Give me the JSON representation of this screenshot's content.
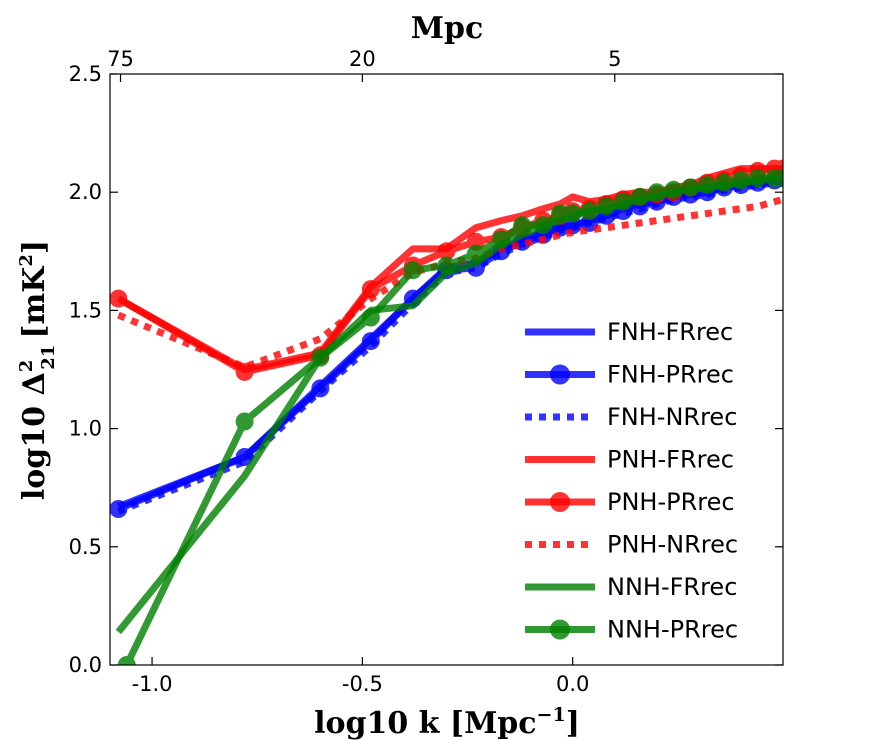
{
  "chart_data": {
    "type": "line",
    "xlabel": "log10 k [Mpc",
    "xlabel_sup": "−1",
    "xlabel_end": "]",
    "ylabel": "log10 Δ",
    "ylabel_sup": "2",
    "ylabel_sub": "21",
    "ylabel_unit": "[mK",
    "ylabel_unit_sup": "2",
    "ylabel_end": "]",
    "top_axis_label": "Mpc",
    "xlim": [
      -1.1,
      0.5
    ],
    "ylim": [
      0.0,
      2.5
    ],
    "x_ticks": [
      {
        "v": -1.0,
        "label": "-1.0"
      },
      {
        "v": -0.5,
        "label": "-0.5"
      },
      {
        "v": 0.0,
        "label": "0.0"
      }
    ],
    "y_ticks": [
      {
        "v": 0.0,
        "label": "0.0"
      },
      {
        "v": 0.5,
        "label": "0.5"
      },
      {
        "v": 1.0,
        "label": "1.0"
      },
      {
        "v": 1.5,
        "label": "1.5"
      },
      {
        "v": 2.0,
        "label": "2.0"
      },
      {
        "v": 2.5,
        "label": "2.5"
      }
    ],
    "top_ticks": [
      {
        "v": -1.075,
        "label": "75"
      },
      {
        "v": -0.5,
        "label": "20"
      },
      {
        "v": 0.1,
        "label": "5"
      }
    ],
    "legend_position": "lower-right",
    "series": [
      {
        "name": "FNH-FRrec",
        "color": "#0000ff",
        "style": "solid",
        "marker": false,
        "x": [
          -1.08,
          -0.78,
          -0.6,
          -0.48,
          -0.38,
          -0.3,
          -0.23,
          -0.17,
          -0.12,
          -0.07,
          -0.03,
          0.0,
          0.04,
          0.08,
          0.12,
          0.16,
          0.2,
          0.24,
          0.28,
          0.32,
          0.36,
          0.4,
          0.44,
          0.48,
          0.5
        ],
        "y": [
          0.67,
          0.88,
          1.18,
          1.38,
          1.55,
          1.68,
          1.7,
          1.76,
          1.8,
          1.83,
          1.85,
          1.86,
          1.88,
          1.9,
          1.93,
          1.95,
          1.96,
          1.98,
          1.99,
          2.0,
          2.02,
          2.03,
          2.04,
          2.05,
          2.06
        ]
      },
      {
        "name": "FNH-PRrec",
        "color": "#0000ff",
        "style": "solid",
        "marker": true,
        "x": [
          -1.08,
          -0.78,
          -0.6,
          -0.48,
          -0.38,
          -0.3,
          -0.23,
          -0.17,
          -0.12,
          -0.07,
          -0.03,
          0.0,
          0.04,
          0.08,
          0.12,
          0.16,
          0.2,
          0.24,
          0.28,
          0.32,
          0.36,
          0.4,
          0.44,
          0.48,
          0.5
        ],
        "y": [
          0.66,
          0.88,
          1.17,
          1.37,
          1.55,
          1.67,
          1.68,
          1.75,
          1.79,
          1.82,
          1.85,
          1.86,
          1.87,
          1.9,
          1.92,
          1.94,
          1.96,
          1.98,
          1.99,
          2.0,
          2.02,
          2.03,
          2.04,
          2.05,
          2.06
        ]
      },
      {
        "name": "FNH-NRrec",
        "color": "#0000ff",
        "style": "dotted",
        "marker": false,
        "x": [
          -1.08,
          -0.78,
          -0.6,
          -0.48,
          -0.38,
          -0.3,
          -0.23,
          -0.17,
          -0.12,
          -0.07,
          -0.03,
          0.0,
          0.04,
          0.08,
          0.12,
          0.16,
          0.2,
          0.24,
          0.28,
          0.32,
          0.36,
          0.4,
          0.44,
          0.48,
          0.5
        ],
        "y": [
          0.65,
          0.86,
          1.16,
          1.35,
          1.53,
          1.66,
          1.68,
          1.74,
          1.78,
          1.81,
          1.84,
          1.85,
          1.87,
          1.89,
          1.91,
          1.93,
          1.95,
          1.97,
          1.98,
          1.99,
          2.01,
          2.02,
          2.03,
          2.04,
          2.05
        ]
      },
      {
        "name": "PNH-FRrec",
        "color": "#ff0000",
        "style": "solid",
        "marker": false,
        "x": [
          -1.08,
          -0.78,
          -0.6,
          -0.48,
          -0.38,
          -0.3,
          -0.23,
          -0.17,
          -0.12,
          -0.07,
          -0.03,
          0.0,
          0.04,
          0.08,
          0.12,
          0.16,
          0.2,
          0.24,
          0.28,
          0.32,
          0.36,
          0.4,
          0.44,
          0.48,
          0.5
        ],
        "y": [
          1.55,
          1.25,
          1.32,
          1.6,
          1.76,
          1.76,
          1.85,
          1.88,
          1.9,
          1.93,
          1.95,
          1.98,
          1.96,
          1.97,
          1.99,
          2.0,
          2.0,
          2.02,
          2.03,
          2.06,
          2.08,
          2.1,
          2.1,
          2.1,
          2.1
        ]
      },
      {
        "name": "PNH-PRrec",
        "color": "#ff0000",
        "style": "solid",
        "marker": true,
        "x": [
          -1.08,
          -0.78,
          -0.6,
          -0.48,
          -0.38,
          -0.3,
          -0.23,
          -0.17,
          -0.12,
          -0.07,
          -0.03,
          0.0,
          0.04,
          0.08,
          0.12,
          0.16,
          0.2,
          0.24,
          0.28,
          0.32,
          0.36,
          0.4,
          0.44,
          0.48,
          0.5
        ],
        "y": [
          1.55,
          1.24,
          1.31,
          1.59,
          1.69,
          1.75,
          1.79,
          1.81,
          1.85,
          1.88,
          1.9,
          1.92,
          1.93,
          1.95,
          1.97,
          1.98,
          1.99,
          2.0,
          2.02,
          2.04,
          2.05,
          2.07,
          2.09,
          2.1,
          2.1
        ]
      },
      {
        "name": "PNH-NRrec",
        "color": "#ff0000",
        "style": "dotted",
        "marker": false,
        "x": [
          -1.08,
          -0.78,
          -0.6,
          -0.48,
          -0.38,
          -0.3,
          -0.23,
          -0.17,
          -0.12,
          -0.07,
          -0.03,
          0.0,
          0.04,
          0.08,
          0.12,
          0.16,
          0.2,
          0.24,
          0.28,
          0.32,
          0.36,
          0.4,
          0.44,
          0.48,
          0.5
        ],
        "y": [
          1.48,
          1.26,
          1.38,
          1.55,
          1.66,
          1.7,
          1.72,
          1.76,
          1.78,
          1.8,
          1.82,
          1.83,
          1.84,
          1.85,
          1.86,
          1.87,
          1.88,
          1.89,
          1.9,
          1.91,
          1.92,
          1.93,
          1.94,
          1.96,
          1.97
        ]
      },
      {
        "name": "NNH-FRrec",
        "color": "#008000",
        "style": "solid",
        "marker": false,
        "x": [
          -1.08,
          -0.78,
          -0.6,
          -0.48,
          -0.38,
          -0.3,
          -0.23,
          -0.17,
          -0.12,
          -0.07,
          -0.03,
          0.0,
          0.04,
          0.08,
          0.12,
          0.16,
          0.2,
          0.24,
          0.28,
          0.32,
          0.36,
          0.4,
          0.44,
          0.48,
          0.5
        ],
        "y": [
          0.14,
          0.8,
          1.3,
          1.5,
          1.52,
          1.66,
          1.7,
          1.78,
          1.82,
          1.86,
          1.88,
          1.9,
          1.92,
          1.93,
          1.95,
          1.97,
          1.98,
          2.0,
          2.01,
          2.02,
          2.03,
          2.04,
          2.05,
          2.06,
          2.06
        ]
      },
      {
        "name": "NNH-PRrec",
        "color": "#008000",
        "style": "solid",
        "marker": true,
        "x": [
          -1.06,
          -0.78,
          -0.6,
          -0.48,
          -0.38,
          -0.3,
          -0.23,
          -0.17,
          -0.12,
          -0.07,
          -0.03,
          0.0,
          0.04,
          0.08,
          0.12,
          0.16,
          0.2,
          0.24,
          0.28,
          0.32,
          0.36,
          0.4,
          0.44,
          0.48,
          0.5
        ],
        "y": [
          0.0,
          1.03,
          1.3,
          1.47,
          1.67,
          1.69,
          1.74,
          1.8,
          1.86,
          1.86,
          1.91,
          1.91,
          1.92,
          1.94,
          1.96,
          1.98,
          2.0,
          2.01,
          2.02,
          2.03,
          2.04,
          2.05,
          2.06,
          2.06,
          2.06
        ]
      }
    ]
  }
}
